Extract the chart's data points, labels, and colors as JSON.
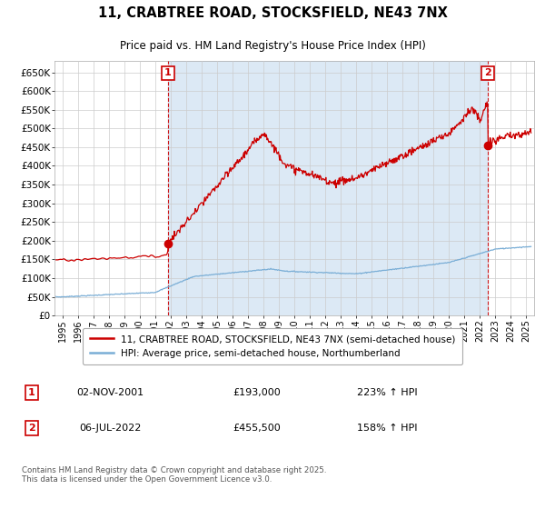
{
  "title": "11, CRABTREE ROAD, STOCKSFIELD, NE43 7NX",
  "subtitle": "Price paid vs. HM Land Registry's House Price Index (HPI)",
  "xlim": [
    1994.5,
    2025.5
  ],
  "ylim": [
    0,
    680000
  ],
  "yticks": [
    0,
    50000,
    100000,
    150000,
    200000,
    250000,
    300000,
    350000,
    400000,
    450000,
    500000,
    550000,
    600000,
    650000
  ],
  "ytick_labels": [
    "£0",
    "£50K",
    "£100K",
    "£150K",
    "£200K",
    "£250K",
    "£300K",
    "£350K",
    "£400K",
    "£450K",
    "£500K",
    "£550K",
    "£600K",
    "£650K"
  ],
  "xticks": [
    1995,
    1996,
    1997,
    1998,
    1999,
    2000,
    2001,
    2002,
    2003,
    2004,
    2005,
    2006,
    2007,
    2008,
    2009,
    2010,
    2011,
    2012,
    2013,
    2014,
    2015,
    2016,
    2017,
    2018,
    2019,
    2020,
    2021,
    2022,
    2023,
    2024,
    2025
  ],
  "sale1_date": 2001.84,
  "sale1_price": 193000,
  "sale1_label": "1",
  "sale2_date": 2022.51,
  "sale2_price": 455500,
  "sale2_label": "2",
  "red_color": "#cc0000",
  "blue_color": "#7aaed6",
  "shade_color": "#dce9f5",
  "vline_color": "#cc0000",
  "legend_label_red": "11, CRABTREE ROAD, STOCKSFIELD, NE43 7NX (semi-detached house)",
  "legend_label_blue": "HPI: Average price, semi-detached house, Northumberland",
  "annotation1_date": "02-NOV-2001",
  "annotation1_price": "£193,000",
  "annotation1_hpi": "223% ↑ HPI",
  "annotation2_date": "06-JUL-2022",
  "annotation2_price": "£455,500",
  "annotation2_hpi": "158% ↑ HPI",
  "footer": "Contains HM Land Registry data © Crown copyright and database right 2025.\nThis data is licensed under the Open Government Licence v3.0.",
  "bg_color": "#ffffff",
  "grid_color": "#cccccc"
}
